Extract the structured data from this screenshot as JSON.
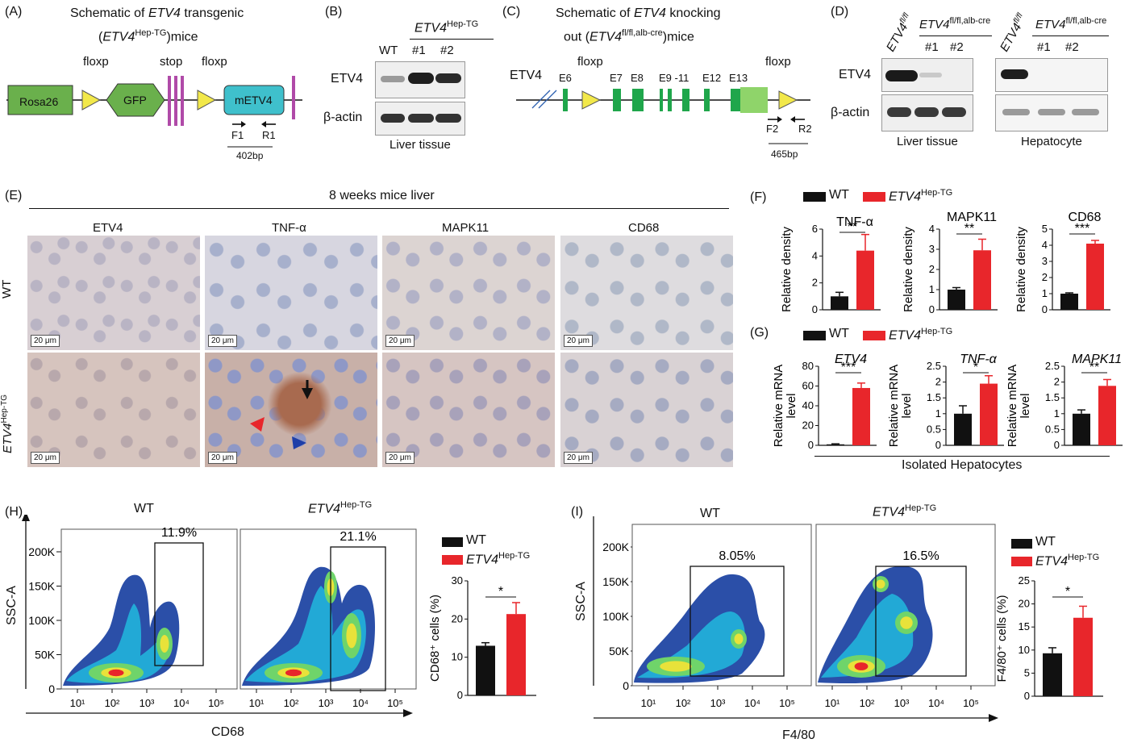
{
  "panels": {
    "A": {
      "label": "(A)",
      "title_line1": "Schematic of ",
      "title_gene": "ETV4",
      "title_line1_end": " transgenic",
      "title_line2_pre": "(",
      "title_line2_gene": "ETV4",
      "title_line2_sup": "Hep-TG",
      "title_line2_post": ")mice",
      "floxp1": "floxp",
      "stop": "stop",
      "floxp2": "floxp",
      "rosa": "Rosa26",
      "gfp": "GFP",
      "metv4": "mETV4",
      "f1": "F1",
      "r1": "R1",
      "bp": "402bp"
    },
    "B": {
      "label": "(B)",
      "gene": "ETV4",
      "sup": "Hep-TG",
      "wt": "WT",
      "l1": "#1",
      "l2": "#2",
      "row1": "ETV4",
      "row2": "β-actin",
      "caption": "Liver tissue"
    },
    "C": {
      "label": "(C)",
      "title_line1": "Schematic of ",
      "title_gene": "ETV4",
      "title_line1_end": " knocking",
      "title_line2_pre": "out (",
      "title_line2_gene": "ETV4",
      "title_line2_sup": "fl/fl,alb-cre",
      "title_line2_post": ")mice",
      "etv4": "ETV4",
      "floxp1": "floxp",
      "floxp2": "floxp",
      "e6": "E6",
      "e7": "E7",
      "e8": "E8",
      "e911": "E9 -11",
      "e12": "E12",
      "e13": "E13",
      "f2": "F2",
      "r2": "R2",
      "bp": "465bp"
    },
    "D": {
      "label": "(D)",
      "ctrl_gene": "ETV4",
      "ctrl_sup": "fl/fl",
      "ko_gene": "ETV4",
      "ko_sup": "fl/fl,alb-cre",
      "l1": "#1",
      "l2": "#2",
      "row1": "ETV4",
      "row2": "β-actin",
      "cap1": "Liver tissue",
      "cap2": "Hepatocyte"
    },
    "E": {
      "label": "(E)",
      "title": "8 weeks mice liver",
      "cols": [
        "ETV4",
        "TNF-α",
        "MAPK11",
        "CD68"
      ],
      "row_wt": "WT",
      "row_tg_gene": "ETV4",
      "row_tg_sup": "Hep-TG",
      "scale": "20 μm"
    },
    "F": {
      "label": "(F)",
      "legend_wt": "WT",
      "legend_tg_gene": "ETV4",
      "legend_tg_sup": "Hep-TG",
      "ylabel": "Relative density"
    },
    "G": {
      "label": "(G)",
      "legend_wt": "WT",
      "legend_tg_gene": "ETV4",
      "legend_tg_sup": "Hep-TG",
      "ylabel1": "Relative mRNA",
      "ylabel2": "level",
      "caption": "Isolated Hepatocytes"
    },
    "H": {
      "label": "(H)",
      "wt": "WT",
      "tg_gene": "ETV4",
      "tg_sup": "Hep-TG",
      "ylabel": "SSC-A",
      "xlabel": "CD68",
      "gate_wt": "11.9%",
      "gate_tg": "21.1%",
      "legend_wt": "WT",
      "legend_tg_gene": "ETV4",
      "legend_tg_sup": "Hep-TG",
      "bar_ylabel": "CD68⁺ cells (%)",
      "sig": "*"
    },
    "I": {
      "label": "(I)",
      "wt": "WT",
      "tg_gene": "ETV4",
      "tg_sup": "Hep-TG",
      "ylabel": "SSC-A",
      "xlabel": "F4/80",
      "gate_wt": "8.05%",
      "gate_tg": "16.5%",
      "legend_wt": "WT",
      "legend_tg_gene": "ETV4",
      "legend_tg_sup": "Hep-TG",
      "bar_ylabel": "F4/80⁺ cells (%)",
      "sig": "*"
    }
  },
  "flow_axes": {
    "yticks": [
      "0",
      "50K",
      "100K",
      "150K",
      "200K"
    ],
    "xticks": [
      "10¹",
      "10²",
      "10³",
      "10⁴",
      "10⁵"
    ]
  },
  "colors": {
    "wt": "#111111",
    "tg": "#e8262b",
    "green_box": "#6ab04c",
    "cyan_box": "#3fc0cc",
    "purple": "#b04aa8",
    "yellow": "#f2e84a",
    "exon": "#1fa64b"
  },
  "chart_data": [
    {
      "type": "bar",
      "panel": "F",
      "title": "TNF-α",
      "ylabel": "Relative density",
      "categories": [
        "WT",
        "ETV4 Hep-TG"
      ],
      "values": [
        1.0,
        4.4
      ],
      "errors": [
        0.3,
        1.2
      ],
      "ylim": [
        0,
        6
      ],
      "yticks": [
        0,
        2,
        4,
        6
      ],
      "sig": "**"
    },
    {
      "type": "bar",
      "panel": "F",
      "title": "MAPK11",
      "ylabel": "Relative density",
      "categories": [
        "WT",
        "ETV4 Hep-TG"
      ],
      "values": [
        1.0,
        2.95
      ],
      "errors": [
        0.1,
        0.55
      ],
      "ylim": [
        0,
        4
      ],
      "yticks": [
        0,
        1,
        2,
        3,
        4
      ],
      "sig": "**"
    },
    {
      "type": "bar",
      "panel": "F",
      "title": "CD68",
      "ylabel": "Relative density",
      "categories": [
        "WT",
        "ETV4 Hep-TG"
      ],
      "values": [
        1.0,
        4.1
      ],
      "errors": [
        0.05,
        0.2
      ],
      "ylim": [
        0,
        5
      ],
      "yticks": [
        0,
        1,
        2,
        3,
        4,
        5
      ],
      "sig": "***"
    },
    {
      "type": "bar",
      "panel": "G",
      "title": "ETV4",
      "ylabel": "Relative mRNA level",
      "categories": [
        "WT",
        "ETV4 Hep-TG"
      ],
      "values": [
        1.0,
        58
      ],
      "errors": [
        0.5,
        5
      ],
      "ylim": [
        0,
        80
      ],
      "yticks": [
        0,
        20,
        40,
        60,
        80
      ],
      "sig": "***"
    },
    {
      "type": "bar",
      "panel": "G",
      "title": "TNF-α",
      "ylabel": "Relative mRNA level",
      "categories": [
        "WT",
        "ETV4 Hep-TG"
      ],
      "values": [
        1.0,
        1.95
      ],
      "errors": [
        0.25,
        0.25
      ],
      "ylim": [
        0,
        2.5
      ],
      "yticks": [
        0,
        0.5,
        1.0,
        1.5,
        2.0,
        2.5
      ],
      "sig": "*"
    },
    {
      "type": "bar",
      "panel": "G",
      "title": "MAPK11",
      "ylabel": "Relative mRNA level",
      "categories": [
        "WT",
        "ETV4 Hep-TG"
      ],
      "values": [
        1.0,
        1.88
      ],
      "errors": [
        0.12,
        0.2
      ],
      "ylim": [
        0,
        2.5
      ],
      "yticks": [
        0,
        0.5,
        1.0,
        1.5,
        2.0,
        2.5
      ],
      "sig": "**"
    },
    {
      "type": "bar",
      "panel": "H",
      "ylabel": "CD68⁺ cells (%)",
      "categories": [
        "WT",
        "ETV4 Hep-TG"
      ],
      "values": [
        13,
        21.3
      ],
      "errors": [
        0.8,
        3
      ],
      "ylim": [
        0,
        30
      ],
      "yticks": [
        0,
        10,
        20,
        30
      ],
      "sig": "*"
    },
    {
      "type": "bar",
      "panel": "I",
      "ylabel": "F4/80⁺ cells (%)",
      "categories": [
        "WT",
        "ETV4 Hep-TG"
      ],
      "values": [
        9.3,
        17
      ],
      "errors": [
        1.2,
        2.5
      ],
      "ylim": [
        0,
        25
      ],
      "yticks": [
        0,
        5,
        10,
        15,
        20,
        25
      ],
      "sig": "*"
    }
  ]
}
